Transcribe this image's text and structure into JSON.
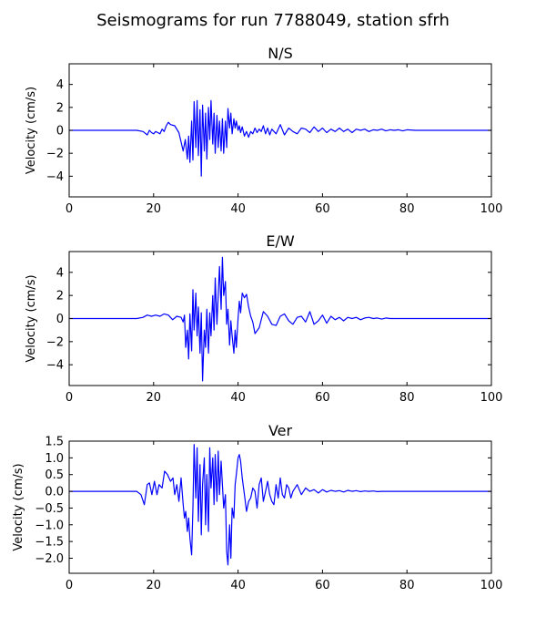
{
  "figure": {
    "title": "Seismograms for run 7788049, station sfrh"
  },
  "chart_data": [
    {
      "type": "line",
      "title": "N/S",
      "xlabel": "",
      "ylabel": "Velocity (cm/s)",
      "xlim": [
        0,
        100
      ],
      "ylim": [
        -5.8,
        5.8
      ],
      "xticks": [
        0,
        20,
        40,
        60,
        80,
        100
      ],
      "yticks": [
        -4,
        -2,
        0,
        2,
        4
      ],
      "ytick_labels": [
        "−4",
        "−2",
        "0",
        "2",
        "4"
      ],
      "grid": false,
      "color": "#0000ff",
      "x": [
        0,
        16,
        17.5,
        18.5,
        19,
        19.5,
        20,
        20.5,
        21,
        21.5,
        22,
        22.5,
        23,
        23.5,
        24,
        25,
        26,
        27,
        27.5,
        28,
        28.3,
        28.6,
        29,
        29.3,
        29.6,
        30,
        30.3,
        30.6,
        31,
        31.3,
        31.6,
        32,
        32.3,
        32.6,
        33,
        33.3,
        33.6,
        34,
        34.3,
        34.6,
        35,
        35.3,
        35.6,
        36,
        36.3,
        36.6,
        37,
        37.3,
        37.6,
        38,
        38.3,
        38.6,
        39,
        39.3,
        39.6,
        40,
        40.3,
        40.6,
        41,
        41.5,
        42,
        42.5,
        43,
        43.5,
        44,
        44.5,
        45,
        45.5,
        46,
        46.5,
        47,
        47.5,
        48,
        49,
        50,
        51,
        52,
        53,
        54,
        55,
        56,
        57,
        58,
        59,
        60,
        61,
        62,
        63,
        64,
        65,
        66,
        67,
        68,
        69,
        70,
        71,
        72,
        73,
        74,
        75,
        76,
        77,
        78,
        79,
        80,
        82,
        84,
        86,
        88,
        90,
        95,
        100
      ],
      "y": [
        0,
        0,
        -0.1,
        -0.4,
        0,
        -0.2,
        -0.3,
        -0.1,
        -0.2,
        -0.3,
        0.1,
        -0.1,
        0.4,
        0.7,
        0.5,
        0.4,
        -0.2,
        -1.8,
        -0.8,
        -2.5,
        -0.5,
        -2.8,
        0.8,
        -2.6,
        2.5,
        -1.5,
        2.6,
        -2.2,
        1.8,
        -4,
        2.2,
        -1.8,
        1.5,
        -2.5,
        2.0,
        -0.8,
        2.6,
        -1.2,
        1.5,
        -2.0,
        1.3,
        -1.5,
        0.8,
        -1.8,
        1.0,
        -2.0,
        0.8,
        -1.5,
        1.9,
        0.2,
        1.5,
        -0.3,
        1.0,
        0.2,
        0.8,
        0,
        0.4,
        -0.2,
        0.3,
        -0.5,
        -0.1,
        -0.6,
        -0.1,
        -0.3,
        0.2,
        -0.2,
        0.1,
        -0.1,
        0.4,
        -0.3,
        0.2,
        -0.4,
        0.1,
        -0.3,
        0.5,
        -0.4,
        0.2,
        -0.1,
        -0.3,
        0.2,
        0.1,
        -0.2,
        0.3,
        -0.1,
        0.2,
        -0.2,
        0.1,
        -0.1,
        0.2,
        -0.1,
        0.1,
        -0.2,
        0.1,
        0,
        0.1,
        -0.1,
        0.05,
        0,
        0.1,
        -0.05,
        0.05,
        0,
        0.05,
        -0.05,
        0.05,
        0,
        0,
        0,
        0,
        0,
        0,
        0
      ]
    },
    {
      "type": "line",
      "title": "E/W",
      "xlabel": "",
      "ylabel": "Velocity (cm/s)",
      "xlim": [
        0,
        100
      ],
      "ylim": [
        -5.8,
        5.8
      ],
      "xticks": [
        0,
        20,
        40,
        60,
        80,
        100
      ],
      "yticks": [
        -4,
        -2,
        0,
        2,
        4
      ],
      "ytick_labels": [
        "−4",
        "−2",
        "0",
        "2",
        "4"
      ],
      "grid": false,
      "color": "#0000ff",
      "x": [
        0,
        16,
        17.5,
        18.5,
        19.5,
        20.5,
        21.5,
        22.5,
        23.5,
        24.5,
        25.5,
        26.5,
        27,
        27.3,
        27.6,
        28,
        28.3,
        28.6,
        29,
        29.3,
        29.6,
        30,
        30.3,
        30.6,
        31,
        31.3,
        31.6,
        32,
        32.3,
        32.6,
        33,
        33.3,
        33.6,
        34,
        34.3,
        34.6,
        35,
        35.3,
        35.6,
        36,
        36.3,
        36.6,
        37,
        37.3,
        37.6,
        38,
        38.3,
        38.6,
        39,
        39.3,
        39.6,
        40,
        40.3,
        40.6,
        41,
        41.5,
        42,
        42.5,
        43,
        43.5,
        44,
        45,
        46,
        47,
        48,
        49,
        50,
        51,
        52,
        53,
        54,
        55,
        56,
        57,
        58,
        59,
        60,
        61,
        62,
        63,
        64,
        65,
        66,
        67,
        68,
        69,
        70,
        71,
        72,
        73,
        74,
        75,
        76,
        78,
        80,
        82,
        84,
        86,
        90,
        95,
        100
      ],
      "y": [
        0,
        0,
        0.1,
        0.3,
        0.2,
        0.3,
        0.2,
        0.4,
        0.3,
        -0.1,
        0.2,
        0.1,
        -0.3,
        0.3,
        -2.5,
        -1.0,
        -3.5,
        0.4,
        -2.8,
        2.5,
        -1.0,
        2.2,
        -1.5,
        1.0,
        -3.0,
        0.5,
        -5.4,
        -1.0,
        -2.5,
        0.8,
        -3.0,
        0.5,
        -1.5,
        2.0,
        -1.0,
        3.5,
        -0.5,
        2.0,
        4.5,
        0.8,
        5.3,
        2.0,
        3.2,
        -0.5,
        0.8,
        -2.3,
        -0.2,
        -1.5,
        -3.0,
        -1.0,
        -2.5,
        0,
        1.5,
        0.5,
        2.2,
        1.8,
        2.1,
        1.0,
        0.2,
        -0.3,
        -1.3,
        -0.8,
        0.6,
        0.2,
        -0.5,
        -0.6,
        0.2,
        0.4,
        -0.2,
        -0.5,
        0.1,
        0.2,
        -0.3,
        0.6,
        -0.5,
        -0.2,
        0.3,
        -0.4,
        0.2,
        -0.1,
        0.1,
        -0.2,
        0.1,
        0,
        0.1,
        -0.1,
        0.05,
        0.1,
        0,
        0.05,
        -0.05,
        0.05,
        0,
        0,
        0,
        0,
        0,
        0,
        0,
        0,
        0
      ]
    },
    {
      "type": "line",
      "title": "Ver",
      "xlabel": "",
      "ylabel": "Velocity (cm/s)",
      "xlim": [
        0,
        100
      ],
      "ylim": [
        -2.45,
        1.5
      ],
      "xticks": [
        0,
        20,
        40,
        60,
        80,
        100
      ],
      "yticks": [
        -2.0,
        -1.5,
        -1.0,
        -0.5,
        0.0,
        0.5,
        1.0,
        1.5
      ],
      "ytick_labels": [
        "−2.0",
        "−1.5",
        "−1.0",
        "−0.5",
        "0.0",
        "0.5",
        "1.0",
        "1.5"
      ],
      "grid": false,
      "color": "#0000ff",
      "x": [
        0,
        16,
        17,
        17.8,
        18.5,
        19,
        19.6,
        20.2,
        20.8,
        21.3,
        22,
        22.6,
        23.3,
        24,
        24.6,
        25,
        25.5,
        26,
        26.5,
        27,
        27.3,
        27.6,
        28,
        28.3,
        28.6,
        29,
        29.3,
        29.6,
        30,
        30.3,
        30.6,
        31,
        31.3,
        31.6,
        32,
        32.3,
        32.6,
        33,
        33.3,
        33.6,
        34,
        34.3,
        34.6,
        35,
        35.3,
        35.6,
        36,
        36.3,
        36.6,
        37,
        37.3,
        37.6,
        38,
        38.3,
        38.6,
        39,
        39.3,
        39.6,
        40,
        40.3,
        40.6,
        41,
        41.5,
        42,
        42.5,
        43,
        43.5,
        44,
        44.5,
        45,
        45.5,
        46,
        46.5,
        47,
        47.5,
        48,
        48.5,
        49,
        49.5,
        50,
        50.5,
        51,
        51.5,
        52,
        52.5,
        53,
        54,
        55,
        56,
        57,
        58,
        59,
        60,
        61,
        62,
        63,
        64,
        65,
        66,
        67,
        68,
        69,
        70,
        71,
        72,
        73,
        74,
        75,
        76,
        78,
        80,
        84,
        90,
        100
      ],
      "y": [
        0,
        0,
        -0.1,
        -0.4,
        0.2,
        0.25,
        -0.1,
        0.3,
        -0.1,
        0.2,
        0.1,
        0.6,
        0.5,
        0.3,
        0.4,
        -0.1,
        0.2,
        -0.3,
        0.4,
        -0.4,
        -0.8,
        -0.6,
        -1.2,
        -0.8,
        -1.4,
        -1.9,
        -0.5,
        1.4,
        -0.2,
        1.3,
        -0.9,
        0.8,
        -1.3,
        0.2,
        1.0,
        -1.0,
        0.5,
        -1.2,
        1.3,
        0.1,
        1.0,
        -0.4,
        1.1,
        -0.3,
        1.2,
        -0.1,
        0.9,
        0.2,
        -0.5,
        -0.1,
        -1.8,
        -2.2,
        -1.0,
        -2.0,
        -0.5,
        -0.8,
        0.2,
        0.5,
        1.0,
        1.1,
        0.9,
        0.4,
        -0.1,
        -0.6,
        -0.3,
        -0.2,
        0.1,
        0,
        -0.5,
        0.2,
        0.4,
        -0.3,
        0,
        0.3,
        -0.1,
        -0.3,
        -0.4,
        0.2,
        -0.2,
        0.4,
        -0.1,
        -0.2,
        0.2,
        0.1,
        -0.2,
        0,
        0.2,
        -0.1,
        0.1,
        0,
        0.05,
        -0.05,
        0.05,
        -0.02,
        0.03,
        0,
        0.02,
        -0.02,
        0.03,
        0,
        0.02,
        -0.01,
        0.01,
        0,
        0.01,
        -0.01,
        0,
        0,
        0,
        0,
        0,
        0,
        0,
        0
      ]
    }
  ]
}
